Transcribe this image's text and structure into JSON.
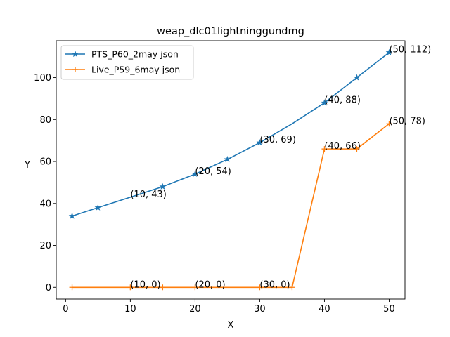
{
  "chart_data": {
    "type": "line",
    "title": "weap_dlc01lightninggundmg",
    "xlabel": "X",
    "ylabel": "Y",
    "xlim": [
      -1.45,
      52.45
    ],
    "ylim": [
      -5.6,
      117.6
    ],
    "xticks": [
      0,
      10,
      20,
      30,
      40,
      50
    ],
    "yticks": [
      0,
      20,
      40,
      60,
      80,
      100
    ],
    "legend_position": "upper-left",
    "grid": false,
    "series": [
      {
        "name": "PTS_P60_2may json",
        "color": "#1f77b4",
        "marker": "star",
        "x": [
          1,
          5,
          10,
          15,
          20,
          25,
          30,
          35,
          40,
          45,
          50
        ],
        "y": [
          34,
          38,
          43,
          48,
          54,
          61,
          69,
          78,
          88,
          100,
          112
        ],
        "markers_at": [
          1,
          5,
          15,
          20,
          25,
          30,
          40,
          45,
          50
        ]
      },
      {
        "name": "Live_P59_6may json",
        "color": "#ff7f0e",
        "marker": "plus",
        "x": [
          1,
          10,
          15,
          20,
          30,
          35,
          40,
          45,
          50
        ],
        "y": [
          0,
          0,
          0,
          0,
          0,
          0,
          66,
          66,
          78
        ],
        "markers_at": [
          1,
          10,
          15,
          20,
          30,
          35,
          40,
          45,
          50
        ]
      }
    ],
    "annotations": [
      {
        "x": 10,
        "y": 43,
        "text": "(10, 43)"
      },
      {
        "x": 20,
        "y": 54,
        "text": "(20, 54)"
      },
      {
        "x": 30,
        "y": 69,
        "text": "(30, 69)"
      },
      {
        "x": 40,
        "y": 88,
        "text": "(40, 88)"
      },
      {
        "x": 50,
        "y": 112,
        "text": "(50, 112)"
      },
      {
        "x": 10,
        "y": 0,
        "text": "(10, 0)"
      },
      {
        "x": 20,
        "y": 0,
        "text": "(20, 0)"
      },
      {
        "x": 30,
        "y": 0,
        "text": "(30, 0)"
      },
      {
        "x": 40,
        "y": 66,
        "text": "(40, 66)"
      },
      {
        "x": 50,
        "y": 78,
        "text": "(50, 78)"
      }
    ]
  }
}
